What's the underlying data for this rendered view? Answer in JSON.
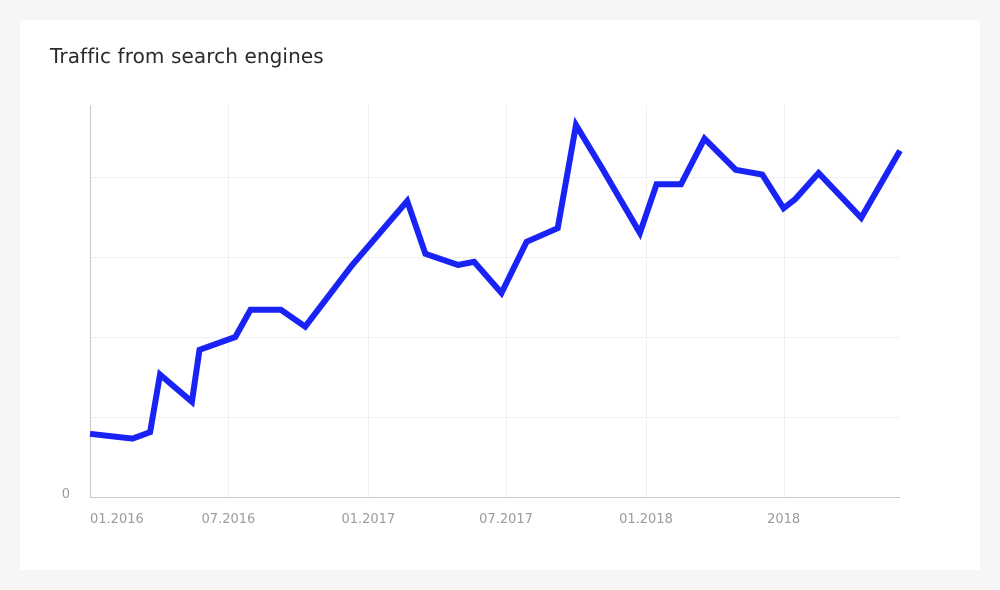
{
  "card": {
    "title": "Traffic from search engines"
  },
  "chart_data": {
    "type": "line",
    "title": "Traffic from search engines",
    "xlabel": "",
    "ylabel": "",
    "x_range": [
      "2016-01-01",
      "2018-12-01"
    ],
    "y_range": [
      0,
      500
    ],
    "y_ticks": [
      {
        "value": 0,
        "label": "0"
      },
      {
        "value": 100,
        "label": ""
      },
      {
        "value": 200,
        "label": ""
      },
      {
        "value": 300,
        "label": ""
      },
      {
        "value": 400,
        "label": ""
      }
    ],
    "x_ticks": [
      {
        "value": "2016-01-01",
        "label": "01.2016"
      },
      {
        "value": "2016-07-01",
        "label": "07.2016"
      },
      {
        "value": "2017-01-01",
        "label": "01.2017"
      },
      {
        "value": "2017-07-01",
        "label": "07.2017"
      },
      {
        "value": "2018-01-01",
        "label": "01.2018"
      },
      {
        "value": "2018-07-01",
        "label": "2018"
      }
    ],
    "grid": true,
    "legend": "none",
    "series": [
      {
        "color": "#1a23f5",
        "points": [
          {
            "x": "2016-01-01",
            "y": 79
          },
          {
            "x": "2016-02-26",
            "y": 73
          },
          {
            "x": "2016-03-20",
            "y": 81
          },
          {
            "x": "2016-04-02",
            "y": 153
          },
          {
            "x": "2016-05-14",
            "y": 119
          },
          {
            "x": "2016-05-24",
            "y": 184
          },
          {
            "x": "2016-07-10",
            "y": 200
          },
          {
            "x": "2016-07-30",
            "y": 234
          },
          {
            "x": "2016-09-08",
            "y": 234
          },
          {
            "x": "2016-10-10",
            "y": 213
          },
          {
            "x": "2016-12-10",
            "y": 289
          },
          {
            "x": "2017-02-21",
            "y": 370
          },
          {
            "x": "2017-03-17",
            "y": 304
          },
          {
            "x": "2017-04-29",
            "y": 290
          },
          {
            "x": "2017-05-20",
            "y": 294
          },
          {
            "x": "2017-06-25",
            "y": 255
          },
          {
            "x": "2017-07-28",
            "y": 319
          },
          {
            "x": "2017-09-07",
            "y": 336
          },
          {
            "x": "2017-10-01",
            "y": 465
          },
          {
            "x": "2017-11-03",
            "y": 413
          },
          {
            "x": "2017-12-24",
            "y": 330
          },
          {
            "x": "2018-01-15",
            "y": 391
          },
          {
            "x": "2018-02-16",
            "y": 391
          },
          {
            "x": "2018-03-19",
            "y": 448
          },
          {
            "x": "2018-04-29",
            "y": 409
          },
          {
            "x": "2018-06-03",
            "y": 403
          },
          {
            "x": "2018-07-01",
            "y": 361
          },
          {
            "x": "2018-07-16",
            "y": 372
          },
          {
            "x": "2018-08-16",
            "y": 405
          },
          {
            "x": "2018-10-11",
            "y": 349
          },
          {
            "x": "2018-12-01",
            "y": 433
          }
        ]
      }
    ]
  }
}
